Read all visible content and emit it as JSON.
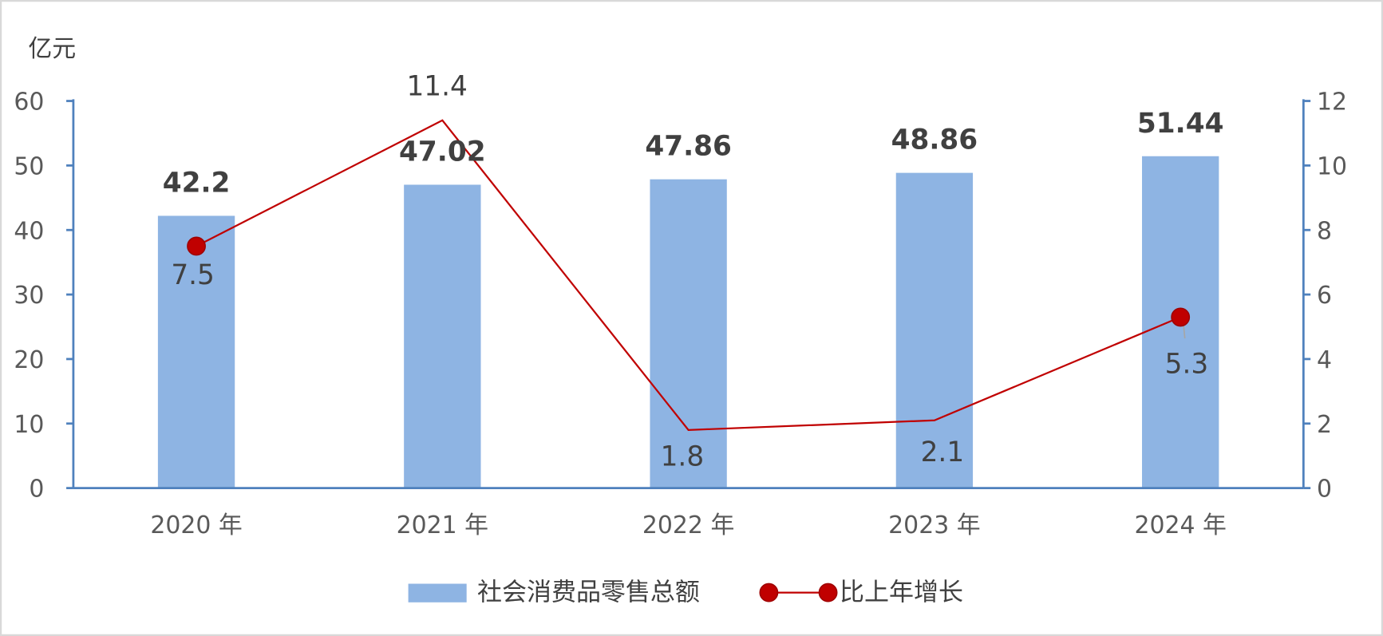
{
  "chart_data": {
    "type": "bar",
    "categories": [
      "2020 年",
      "2021 年",
      "2022 年",
      "2023 年",
      "2024 年"
    ],
    "ylabel": "亿元",
    "ylim_left": [
      0,
      60
    ],
    "ylim_right": [
      0,
      12
    ],
    "yticks_left": [
      "0",
      "10",
      "20",
      "30",
      "40",
      "50",
      "60"
    ],
    "yticks_right": [
      "0",
      "2",
      "4",
      "6",
      "8",
      "10",
      "12"
    ],
    "grid": false,
    "legend_position": "bottom",
    "axis_color": "#4F81BD",
    "series": [
      {
        "name": "社会消费品零售总额",
        "type": "bar",
        "axis": "left",
        "color": "#8EB4E3",
        "values": [
          42.2,
          47.02,
          47.86,
          48.86,
          51.44
        ],
        "labels": [
          "42.2",
          "47.02",
          "47.86",
          "48.86",
          "51.44"
        ]
      },
      {
        "name": "比上年增长",
        "type": "line",
        "axis": "right",
        "color": "#C00000",
        "values": [
          7.5,
          11.4,
          1.8,
          2.1,
          5.3
        ],
        "labels": [
          "7.5",
          "11.4",
          "1.8",
          "2.1",
          "5.3"
        ],
        "markers": [
          true,
          false,
          false,
          false,
          true
        ]
      }
    ]
  }
}
